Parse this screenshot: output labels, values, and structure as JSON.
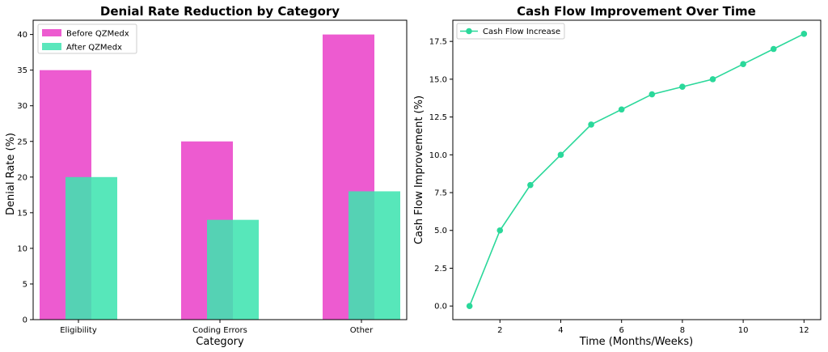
{
  "chart_data": [
    {
      "type": "bar",
      "title": "Denial Rate Reduction by Category",
      "xlabel": "Category",
      "ylabel": "Denial Rate (%)",
      "categories": [
        "Eligibility",
        "Coding Errors",
        "Other"
      ],
      "series": [
        {
          "name": "Before QZMedx",
          "values": [
            35,
            25,
            40
          ],
          "color": "#ea3ec8"
        },
        {
          "name": "After QZMedx",
          "values": [
            20,
            14,
            18
          ],
          "color": "#3ee3b0"
        }
      ],
      "ylim": [
        0,
        42
      ],
      "yticks": [
        0,
        5,
        10,
        15,
        20,
        25,
        30,
        35,
        40
      ],
      "grid": false,
      "legend_position": "top-left"
    },
    {
      "type": "line",
      "title": "Cash Flow Improvement Over Time",
      "xlabel": "Time (Months/Weeks)",
      "ylabel": "Cash Flow Improvement (%)",
      "series": [
        {
          "name": "Cash Flow Increase",
          "x": [
            1,
            2,
            3,
            4,
            5,
            6,
            7,
            8,
            9,
            10,
            11,
            12
          ],
          "y": [
            0,
            5,
            8,
            10,
            12,
            13,
            14,
            14.5,
            15,
            16,
            17,
            18
          ],
          "color": "#2ad89a"
        }
      ],
      "xlim": [
        0.45,
        12.55
      ],
      "ylim": [
        -0.9,
        18.9
      ],
      "xticks": [
        2,
        4,
        6,
        8,
        10,
        12
      ],
      "yticks": [
        0.0,
        2.5,
        5.0,
        7.5,
        10.0,
        12.5,
        15.0,
        17.5
      ],
      "ytick_labels": [
        "0.0",
        "2.5",
        "5.0",
        "7.5",
        "10.0",
        "12.5",
        "15.0",
        "17.5"
      ],
      "grid": false,
      "legend_position": "top-left"
    }
  ]
}
